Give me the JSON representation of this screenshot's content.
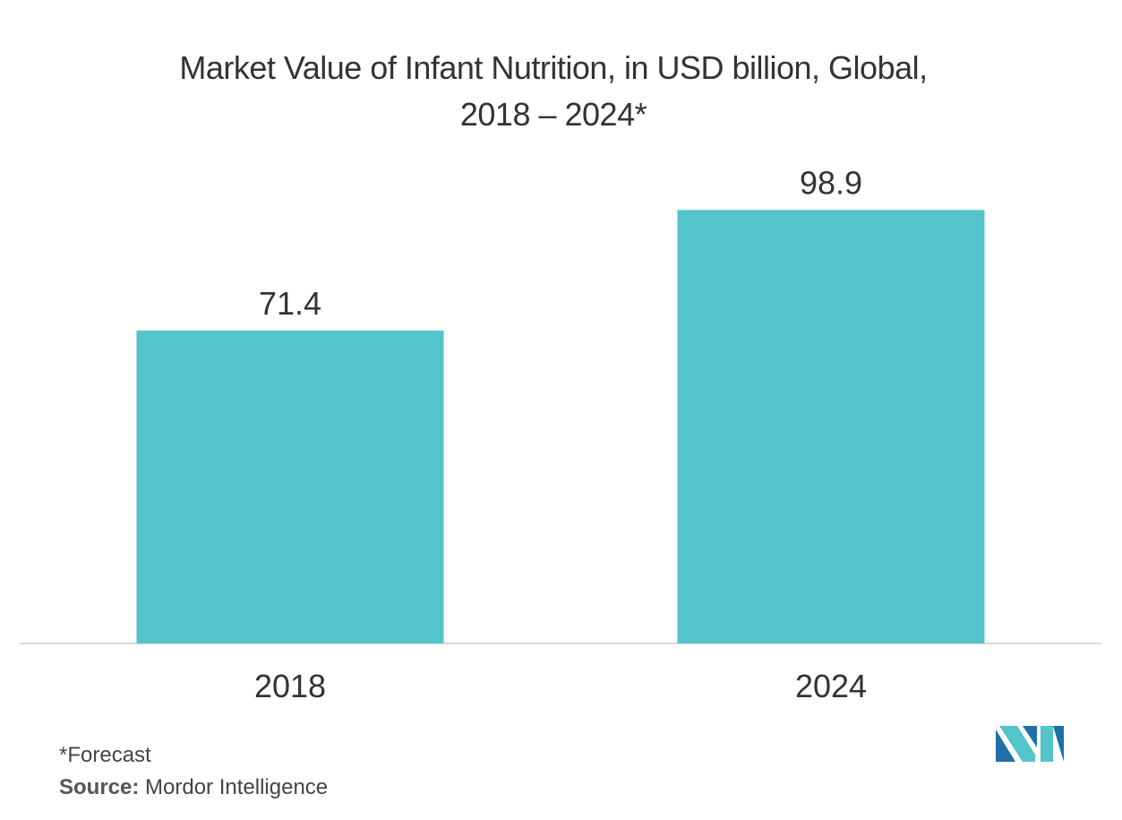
{
  "chart_data": {
    "type": "bar",
    "title_line1": "Market Value of Infant Nutrition, in USD billion, Global,",
    "title_line2": "2018 – 2024*",
    "categories": [
      "2018",
      "2024"
    ],
    "values": [
      71.4,
      98.9
    ],
    "data_labels": [
      "71.4",
      "98.9"
    ],
    "xlabel": "",
    "ylabel": "",
    "ylim": [
      0,
      110
    ],
    "grid": false,
    "bar_color": "#52C4CA",
    "axis_color": "#D9D9D9"
  },
  "footnote": "*Forecast",
  "source": {
    "label": "Source:",
    "text": "Mordor Intelligence"
  },
  "logo": {
    "icon": "mordor-intelligence-logo",
    "colors": [
      "#1F6FA8",
      "#52C4CA"
    ]
  }
}
